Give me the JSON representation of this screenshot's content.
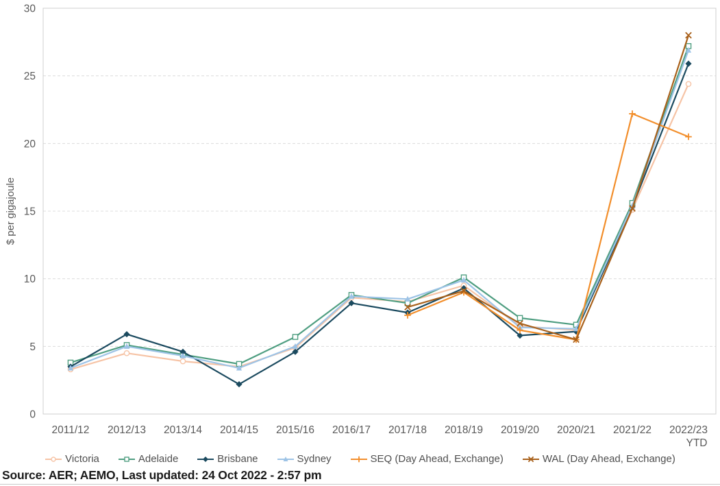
{
  "chart_data": {
    "type": "line",
    "title": "",
    "xlabel": "",
    "ylabel": "$ per gigajoule",
    "ylim": [
      0,
      30
    ],
    "yticks": [
      0,
      5,
      10,
      15,
      20,
      25,
      30
    ],
    "grid": "horizontal-dashed",
    "legend_position": "bottom",
    "categories": [
      "2011/12",
      "2012/13",
      "2013/14",
      "2014/15",
      "2015/16",
      "2016/17",
      "2017/18",
      "2018/19",
      "2019/20",
      "2020/21",
      "2021/22",
      "2022/23"
    ],
    "last_category_suffix": "YTD",
    "series": [
      {
        "name": "Victoria",
        "color": "#F6C3A5",
        "marker": "circle",
        "values": [
          3.3,
          4.5,
          3.9,
          3.5,
          4.9,
          8.6,
          8.3,
          9.5,
          6.5,
          6.2,
          15.1,
          24.4
        ]
      },
      {
        "name": "Adelaide",
        "color": "#4F9E81",
        "marker": "square",
        "values": [
          3.8,
          5.1,
          4.4,
          3.7,
          5.7,
          8.8,
          8.2,
          10.1,
          7.1,
          6.6,
          15.6,
          27.2
        ]
      },
      {
        "name": "Brisbane",
        "color": "#1B4A5F",
        "marker": "diamond",
        "values": [
          3.5,
          5.9,
          4.6,
          2.2,
          4.6,
          8.2,
          7.5,
          9.3,
          5.8,
          6.1,
          15.3,
          25.9
        ]
      },
      {
        "name": "Sydney",
        "color": "#9DC3E6",
        "marker": "triangle",
        "values": [
          3.4,
          5.0,
          4.3,
          3.4,
          5.0,
          8.7,
          8.5,
          9.9,
          6.4,
          6.3,
          15.4,
          26.9
        ]
      },
      {
        "name": "SEQ (Day Ahead, Exchange)",
        "color": "#F28E2B",
        "marker": "plus",
        "values": [
          null,
          null,
          null,
          null,
          null,
          null,
          7.3,
          9.0,
          6.2,
          5.5,
          22.2,
          20.5
        ]
      },
      {
        "name": "WAL (Day Ahead, Exchange)",
        "color": "#A8601A",
        "marker": "x",
        "values": [
          null,
          null,
          null,
          null,
          null,
          null,
          7.9,
          9.1,
          6.7,
          5.5,
          15.2,
          28.0
        ]
      }
    ]
  },
  "footer": {
    "source_text": "Source: AER; AEMO, Last updated: 24 Oct 2022 - 2:57 pm"
  }
}
